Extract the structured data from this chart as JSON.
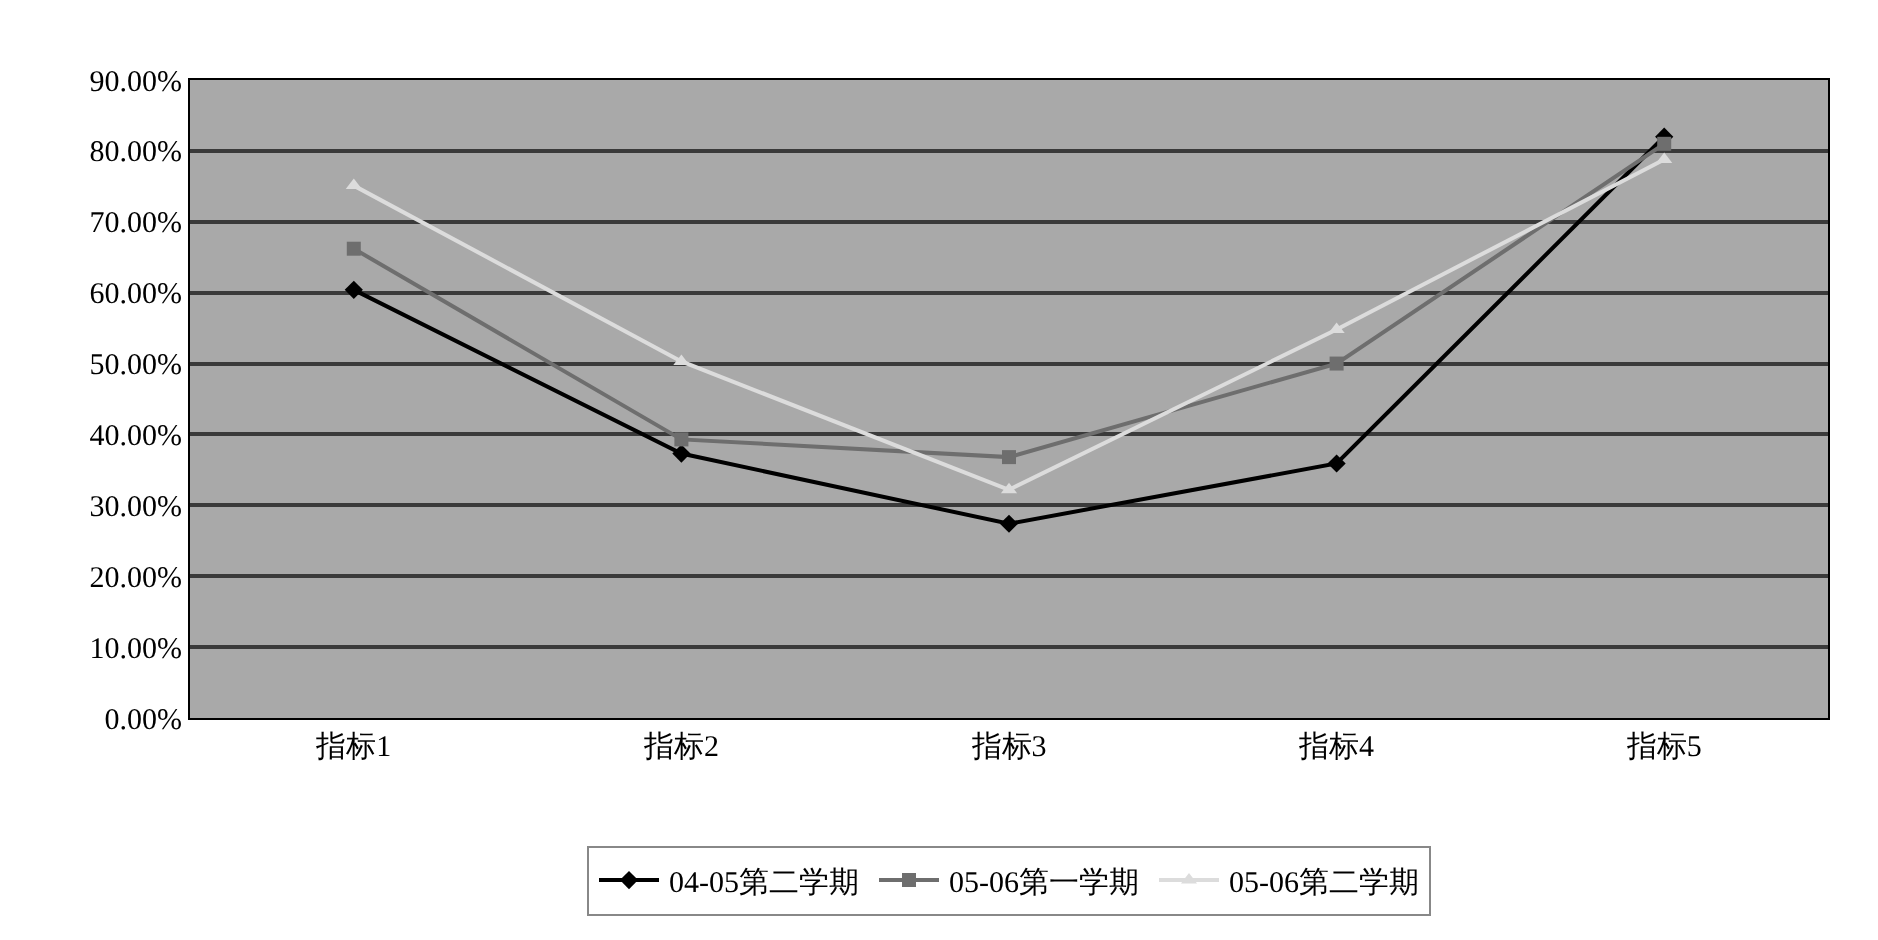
{
  "chart_data": {
    "type": "line",
    "categories": [
      "指标1",
      "指标2",
      "指标3",
      "指标4",
      "指标5"
    ],
    "series": [
      {
        "name": "04-05第二学期",
        "color": "#000000",
        "marker": "diamond",
        "values": [
          60.4,
          37.3,
          27.4,
          35.9,
          82
        ]
      },
      {
        "name": "05-06第一学期",
        "color": "#6e6e6e",
        "marker": "square",
        "values": [
          66.2,
          39.3,
          36.8,
          50,
          81
        ]
      },
      {
        "name": "05-06第二学期",
        "color": "#dcdcdc",
        "marker": "triangle",
        "values": [
          75.1,
          50.3,
          32.2,
          54.8,
          78.8
        ]
      }
    ],
    "ylim": [
      0,
      90
    ],
    "yticks": [
      {
        "value": 0,
        "label": "0.00%"
      },
      {
        "value": 10,
        "label": "10.00%"
      },
      {
        "value": 20,
        "label": "20.00%"
      },
      {
        "value": 30,
        "label": "30.00%"
      },
      {
        "value": 40,
        "label": "40.00%"
      },
      {
        "value": 50,
        "label": "50.00%"
      },
      {
        "value": 60,
        "label": "60.00%"
      },
      {
        "value": 70,
        "label": "70.00%"
      },
      {
        "value": 80,
        "label": "80.00%"
      },
      {
        "value": 90,
        "label": "90.00%"
      }
    ],
    "grid": "y",
    "legend": "bottom",
    "line_style": "solid"
  }
}
